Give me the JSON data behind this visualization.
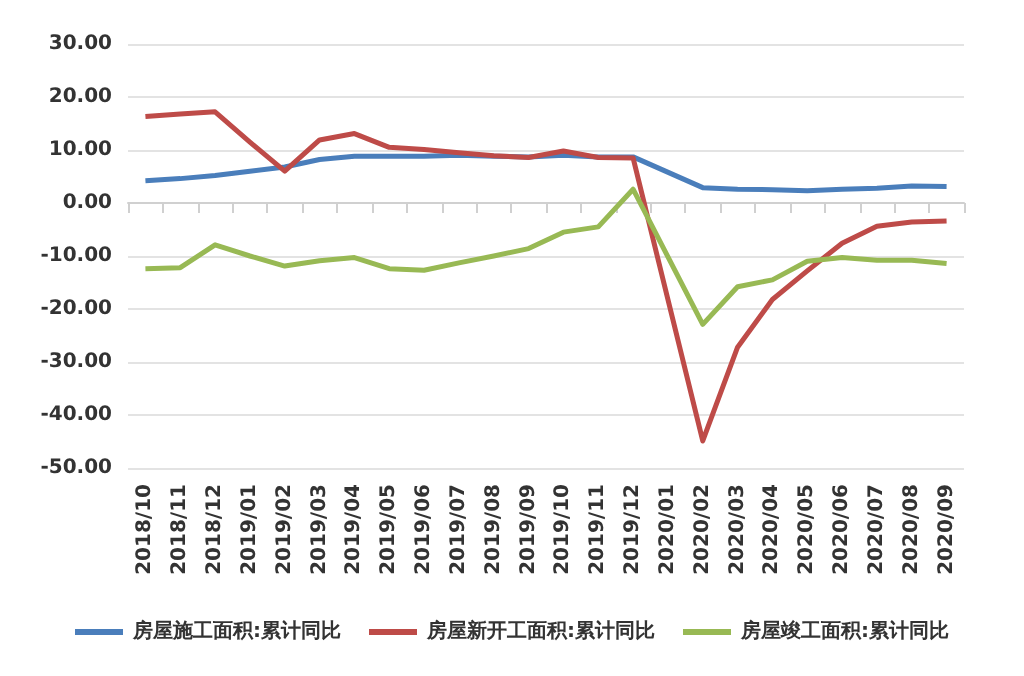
{
  "chart_data": {
    "type": "line",
    "categories": [
      "2018/10",
      "2018/11",
      "2018/12",
      "2019/01",
      "2019/02",
      "2019/03",
      "2019/04",
      "2019/05",
      "2019/06",
      "2019/07",
      "2019/08",
      "2019/09",
      "2019/10",
      "2019/11",
      "2019/12",
      "2020/01",
      "2020/02",
      "2020/03",
      "2020/04",
      "2020/05",
      "2020/06",
      "2020/07",
      "2020/08",
      "2020/09"
    ],
    "series": [
      {
        "name": "房屋施工面积:累计同比",
        "color": "#4a7ebb",
        "values": [
          4.2,
          4.6,
          5.2,
          6.0,
          6.8,
          8.2,
          8.8,
          8.8,
          8.8,
          9.0,
          8.8,
          8.7,
          9.0,
          8.7,
          8.7,
          null,
          2.9,
          2.6,
          2.5,
          2.3,
          2.6,
          2.8,
          3.2,
          3.1
        ]
      },
      {
        "name": "房屋新开工面积:累计同比",
        "color": "#be4b48",
        "values": [
          16.3,
          16.8,
          17.2,
          11.5,
          6.0,
          11.9,
          13.1,
          10.5,
          10.1,
          9.5,
          8.9,
          8.6,
          9.8,
          8.6,
          8.5,
          null,
          -44.9,
          -27.2,
          -18.2,
          -12.8,
          -7.6,
          -4.4,
          -3.6,
          -3.4
        ]
      },
      {
        "name": "房屋竣工面积:累计同比",
        "color": "#98b954",
        "values": [
          -12.4,
          -12.2,
          -7.9,
          -10.0,
          -11.9,
          -10.9,
          -10.3,
          -12.4,
          -12.7,
          -11.3,
          -10.0,
          -8.6,
          -5.5,
          -4.5,
          2.6,
          null,
          -22.9,
          -15.8,
          -14.5,
          -11.0,
          -10.3,
          -10.8,
          -10.8,
          -11.4
        ]
      }
    ],
    "ylim": [
      -50,
      30
    ],
    "yticks": [
      {
        "value": -50,
        "label": "-50.00"
      },
      {
        "value": -40,
        "label": "-40.00"
      },
      {
        "value": -30,
        "label": "-30.00"
      },
      {
        "value": -20,
        "label": "-20.00"
      },
      {
        "value": -10,
        "label": "-10.00"
      },
      {
        "value": 0,
        "label": "0.00"
      },
      {
        "value": 10,
        "label": "10.00"
      },
      {
        "value": 20,
        "label": "20.00"
      },
      {
        "value": 30,
        "label": "30.00"
      }
    ],
    "grid": "y",
    "legend": "bottom",
    "marker": "none",
    "line_style": "solid"
  }
}
